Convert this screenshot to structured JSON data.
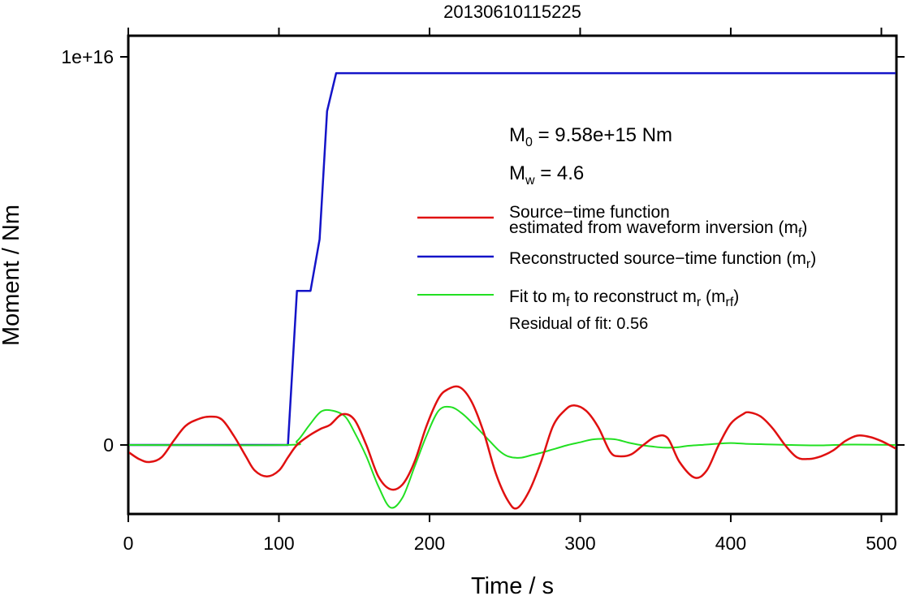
{
  "chart_data": {
    "type": "line",
    "title": "20130610115225",
    "xlabel": "Time / s",
    "ylabel": "Moment / Nm",
    "xlim": [
      0,
      510
    ],
    "x_ticks": [
      0,
      100,
      200,
      300,
      400,
      500
    ],
    "x_tick_labels": [
      "0",
      "100",
      "200",
      "300",
      "400",
      "500"
    ],
    "y_ticks": [
      0,
      1e+16
    ],
    "y_tick_labels": [
      "0",
      "1e+16"
    ],
    "annotations": {
      "m0_label": "M",
      "m0_sub": "0",
      "m0_value": " = 9.58e+15 Nm",
      "mw_label": "M",
      "mw_sub": "w",
      "mw_value": " = 4.6",
      "residual": "Residual of fit: 0.56"
    },
    "legend": {
      "position": "right",
      "entries": [
        {
          "line1": "Source−time function",
          "line2": "estimated from waveform inversion (m",
          "sub": "f",
          "close": ")",
          "color": "#e01010"
        },
        {
          "line1": "Reconstructed source−time function (m",
          "sub": "r",
          "close": ")",
          "color": "#1414c8"
        },
        {
          "a": "Fit to m",
          "sub_a": "f",
          "b": " to reconstruct m",
          "sub_b": "r",
          "c": " (m",
          "sub_c": "rf",
          "d": ")",
          "color": "#22e022"
        }
      ]
    },
    "series": [
      {
        "id": "reconstructed",
        "color": "#1414c8",
        "points": [
          [
            0,
            0
          ],
          [
            106,
            0
          ],
          [
            112,
            3970000000000000.0
          ],
          [
            121,
            3970000000000000.0
          ],
          [
            127,
            5300000000000000.0
          ],
          [
            132,
            8600000000000000.0
          ],
          [
            138,
            9580000000000000.0
          ],
          [
            510,
            9580000000000000.0
          ]
        ]
      },
      {
        "id": "waveform",
        "color": "#e01010",
        "points": [
          [
            0,
            -180000000000000.0
          ],
          [
            7,
            -360000000000000.0
          ],
          [
            14,
            -440000000000000.0
          ],
          [
            22,
            -320000000000000.0
          ],
          [
            30,
            100000000000000.0
          ],
          [
            38,
            490000000000000.0
          ],
          [
            46,
            660000000000000.0
          ],
          [
            54,
            730000000000000.0
          ],
          [
            62,
            660000000000000.0
          ],
          [
            70,
            240000000000000.0
          ],
          [
            78,
            -290000000000000.0
          ],
          [
            84,
            -660000000000000.0
          ],
          [
            92,
            -810000000000000.0
          ],
          [
            100,
            -660000000000000.0
          ],
          [
            106,
            -320000000000000.0
          ],
          [
            112,
            0
          ],
          [
            120,
            240000000000000.0
          ],
          [
            128,
            420000000000000.0
          ],
          [
            134,
            520000000000000.0
          ],
          [
            142,
            790000000000000.0
          ],
          [
            150,
            660000000000000.0
          ],
          [
            158,
            0
          ],
          [
            166,
            -810000000000000.0
          ],
          [
            174,
            -1140000000000000.0
          ],
          [
            182,
            -1020000000000000.0
          ],
          [
            190,
            -440000000000000.0
          ],
          [
            198,
            490000000000000.0
          ],
          [
            206,
            1200000000000000.0
          ],
          [
            212,
            1430000000000000.0
          ],
          [
            220,
            1490000000000000.0
          ],
          [
            228,
            1110000000000000.0
          ],
          [
            236,
            320000000000000.0
          ],
          [
            244,
            -730000000000000.0
          ],
          [
            252,
            -1430000000000000.0
          ],
          [
            258,
            -1630000000000000.0
          ],
          [
            266,
            -1200000000000000.0
          ],
          [
            274,
            -440000000000000.0
          ],
          [
            282,
            490000000000000.0
          ],
          [
            290,
            900000000000000.0
          ],
          [
            296,
            1020000000000000.0
          ],
          [
            304,
            880000000000000.0
          ],
          [
            312,
            460000000000000.0
          ],
          [
            320,
            -180000000000000.0
          ],
          [
            326,
            -290000000000000.0
          ],
          [
            334,
            -240000000000000.0
          ],
          [
            342,
            0
          ],
          [
            350,
            210000000000000.0
          ],
          [
            358,
            180000000000000.0
          ],
          [
            366,
            -440000000000000.0
          ],
          [
            376,
            -840000000000000.0
          ],
          [
            384,
            -660000000000000.0
          ],
          [
            392,
            0
          ],
          [
            400,
            550000000000000.0
          ],
          [
            408,
            790000000000000.0
          ],
          [
            412,
            840000000000000.0
          ],
          [
            420,
            730000000000000.0
          ],
          [
            428,
            420000000000000.0
          ],
          [
            436,
            0
          ],
          [
            444,
            -320000000000000.0
          ],
          [
            452,
            -360000000000000.0
          ],
          [
            460,
            -290000000000000.0
          ],
          [
            468,
            -140000000000000.0
          ],
          [
            476,
            100000000000000.0
          ],
          [
            484,
            240000000000000.0
          ],
          [
            492,
            210000000000000.0
          ],
          [
            500,
            100000000000000.0
          ],
          [
            510,
            -100000000000000.0
          ]
        ]
      },
      {
        "id": "fit",
        "color": "#22e022",
        "points": [
          [
            0,
            0
          ],
          [
            104,
            0
          ],
          [
            112,
            100000000000000.0
          ],
          [
            120,
            500000000000000.0
          ],
          [
            128,
            860000000000000.0
          ],
          [
            136,
            880000000000000.0
          ],
          [
            144,
            730000000000000.0
          ],
          [
            150,
            340000000000000.0
          ],
          [
            158,
            -290000000000000.0
          ],
          [
            166,
            -1060000000000000.0
          ],
          [
            174,
            -1610000000000000.0
          ],
          [
            182,
            -1360000000000000.0
          ],
          [
            190,
            -570000000000000.0
          ],
          [
            198,
            240000000000000.0
          ],
          [
            206,
            880000000000000.0
          ],
          [
            214,
            980000000000000.0
          ],
          [
            222,
            800000000000000.0
          ],
          [
            230,
            500000000000000.0
          ],
          [
            238,
            180000000000000.0
          ],
          [
            246,
            -140000000000000.0
          ],
          [
            252,
            -290000000000000.0
          ],
          [
            260,
            -330000000000000.0
          ],
          [
            268,
            -260000000000000.0
          ],
          [
            276,
            -180000000000000.0
          ],
          [
            284,
            -90000000000000.0
          ],
          [
            292,
            0
          ],
          [
            300,
            70000000000000.0
          ],
          [
            308,
            140000000000000.0
          ],
          [
            316,
            160000000000000.0
          ],
          [
            324,
            140000000000000.0
          ],
          [
            332,
            60000000000000.0
          ],
          [
            340,
            0
          ],
          [
            348,
            -40000000000000.0
          ],
          [
            356,
            -70000000000000.0
          ],
          [
            364,
            -60000000000000.0
          ],
          [
            372,
            -20000000000000.0
          ],
          [
            380,
            0
          ],
          [
            390,
            30000000000000.0
          ],
          [
            400,
            50000000000000.0
          ],
          [
            410,
            30000000000000.0
          ],
          [
            420,
            20000000000000.0
          ],
          [
            440,
            0
          ],
          [
            460,
            -10000000000000.0
          ],
          [
            480,
            10000000000000.0
          ],
          [
            510,
            0
          ]
        ]
      }
    ]
  }
}
